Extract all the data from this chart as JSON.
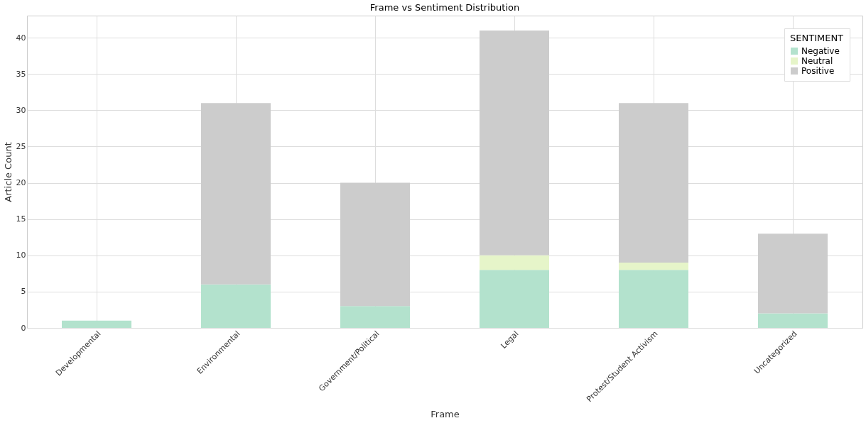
{
  "chart_data": {
    "type": "bar",
    "title": "Frame vs Sentiment Distribution",
    "xlabel": "Frame",
    "ylabel": "Article Count",
    "legend_title": "SENTIMENT",
    "categories": [
      "Developmental",
      "Environmental",
      "Government/Political",
      "Legal",
      "Protest/Student Activism",
      "Uncategorized"
    ],
    "stacked": true,
    "series": [
      {
        "name": "Negative",
        "color": "#b3e2cd",
        "values": [
          1,
          6,
          3,
          8,
          8,
          2
        ]
      },
      {
        "name": "Neutral",
        "color": "#e6f5c9",
        "values": [
          0,
          0,
          0,
          2,
          1,
          0
        ]
      },
      {
        "name": "Positive",
        "color": "#cccccc",
        "values": [
          0,
          25,
          17,
          31,
          22,
          11
        ]
      }
    ],
    "ylim": [
      0,
      43.05
    ],
    "yticks": [
      0,
      5,
      10,
      15,
      20,
      25,
      30,
      35,
      40
    ],
    "grid": true,
    "legend": "top right"
  }
}
